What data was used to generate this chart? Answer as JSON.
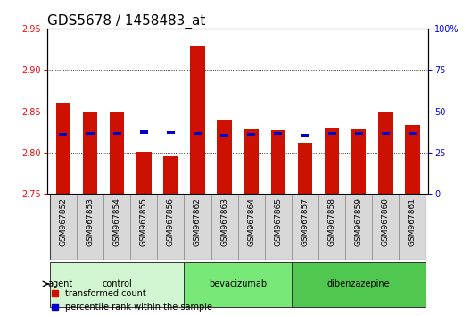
{
  "title": "GDS5678 / 1458483_at",
  "samples": [
    "GSM967852",
    "GSM967853",
    "GSM967854",
    "GSM967855",
    "GSM967856",
    "GSM967862",
    "GSM967863",
    "GSM967864",
    "GSM967865",
    "GSM967857",
    "GSM967858",
    "GSM967859",
    "GSM967860",
    "GSM967861"
  ],
  "red_values": [
    2.86,
    2.848,
    2.85,
    2.801,
    2.795,
    2.928,
    2.84,
    2.828,
    2.827,
    2.812,
    2.83,
    2.828,
    2.848,
    2.833
  ],
  "blue_values": [
    2.82,
    2.821,
    2.821,
    2.823,
    2.822,
    2.821,
    2.818,
    2.82,
    2.821,
    2.818,
    2.821,
    2.821,
    2.821,
    2.821
  ],
  "ylim": [
    2.75,
    2.95
  ],
  "yticks_left": [
    2.75,
    2.8,
    2.85,
    2.9,
    2.95
  ],
  "yticks_right_pct": [
    0,
    25,
    50,
    75,
    100
  ],
  "right_ylabels": [
    "0",
    "25",
    "50",
    "75",
    "100%"
  ],
  "groups": [
    {
      "label": "control",
      "start": 0,
      "end": 5,
      "color": "#d0f5d0"
    },
    {
      "label": "bevacizumab",
      "start": 5,
      "end": 9,
      "color": "#78e878"
    },
    {
      "label": "dibenzazepine",
      "start": 9,
      "end": 14,
      "color": "#50c850"
    }
  ],
  "bar_width": 0.55,
  "blue_bar_width": 0.3,
  "bar_bottom": 2.75,
  "red_color": "#cc1100",
  "blue_color": "#0000cc",
  "bg_color": "#ffffff",
  "xtick_bg_color": "#d8d8d8",
  "grid_color": "#000000",
  "title_fontsize": 11,
  "tick_fontsize": 7,
  "xtick_fontsize": 6.5,
  "label_fontsize": 8,
  "legend_fontsize": 8,
  "agent_label": "agent",
  "legend_red": "transformed count",
  "legend_blue": "percentile rank within the sample"
}
